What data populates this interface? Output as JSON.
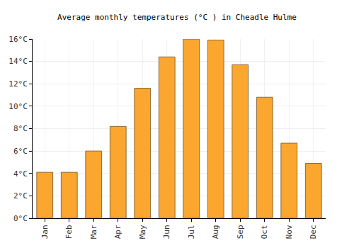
{
  "chart_data": {
    "type": "bar",
    "title": "Average monthly temperatures (°C ) in Cheadle Hulme",
    "categories": [
      "Jan",
      "Feb",
      "Mar",
      "Apr",
      "May",
      "Jun",
      "Jul",
      "Aug",
      "Sep",
      "Oct",
      "Nov",
      "Dec"
    ],
    "values": [
      4.1,
      4.1,
      6.0,
      8.2,
      11.6,
      14.4,
      16.0,
      15.9,
      13.7,
      10.8,
      6.7,
      4.9
    ],
    "color": "#fba62e",
    "ylim": [
      0,
      16
    ],
    "yticks": [
      {
        "value": 0,
        "label": "0°C"
      },
      {
        "value": 2,
        "label": "2°C"
      },
      {
        "value": 4,
        "label": "4°C"
      },
      {
        "value": 6,
        "label": "6°C"
      },
      {
        "value": 8,
        "label": "8°C"
      },
      {
        "value": 10,
        "label": "10°C"
      },
      {
        "value": 12,
        "label": "12°C"
      },
      {
        "value": 14,
        "label": "14°C"
      },
      {
        "value": 16,
        "label": "16°C"
      }
    ],
    "grid": true
  }
}
